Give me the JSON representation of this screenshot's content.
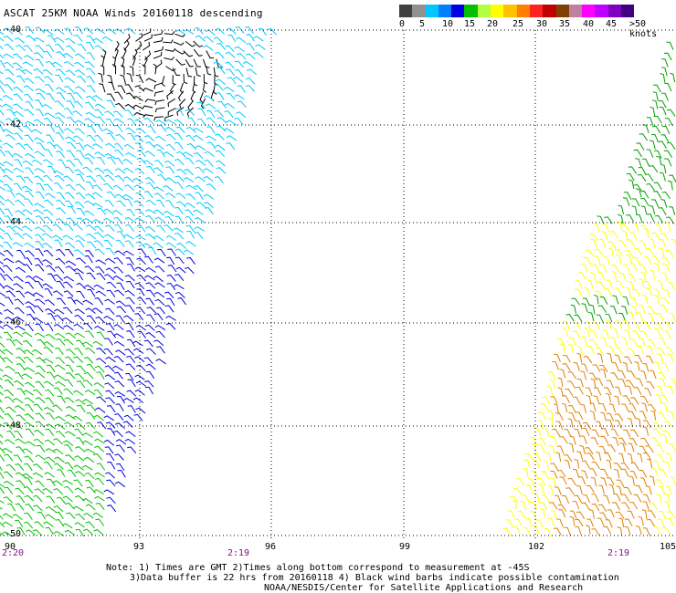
{
  "title": "ASCAT 25KM NOAA Winds 20160118 descending",
  "colorbar": {
    "colors": [
      "#404040",
      "#909090",
      "#00c8ff",
      "#0080ff",
      "#0000e0",
      "#00c000",
      "#b0ff40",
      "#ffff00",
      "#ffc000",
      "#ff8000",
      "#ff2020",
      "#c00000",
      "#804000",
      "#c080a0",
      "#ff00ff",
      "#c000ff",
      "#8000c0",
      "#400080"
    ],
    "tick_labels": [
      "0",
      "5",
      "10",
      "15",
      "20",
      "25",
      "30",
      "35",
      "40",
      "45",
      ">50 knots"
    ]
  },
  "lat_labels": [
    "-40",
    "-42",
    "-44",
    "-46",
    "-48",
    "-50"
  ],
  "lon_labels": [
    "90",
    "93",
    "96",
    "99",
    "102",
    "105"
  ],
  "time_labels": [
    "2:20",
    "2:19",
    "2:19"
  ],
  "notes": {
    "line1": "Note: 1) Times are GMT 2)Times along bottom correspond to measurement at -45S",
    "line2": "3)Data buffer is 22 hrs from 20160118 4) Black wind barbs indicate possible contamination",
    "line3": "NOAA/NESDIS/Center for Satellite Applications and Research"
  },
  "map_data": {
    "lat_range": [
      -50,
      -40
    ],
    "lon_range": [
      90,
      105
    ],
    "regions": [
      {
        "name": "black-cyclone",
        "color": "#000000"
      },
      {
        "name": "cyan-west",
        "color": "#00c8ff"
      },
      {
        "name": "blue-west",
        "color": "#0000e0"
      },
      {
        "name": "green-west",
        "color": "#00c000"
      },
      {
        "name": "green-east",
        "color": "#00a000"
      },
      {
        "name": "yellow-east",
        "color": "#ffff00"
      },
      {
        "name": "orange-east",
        "color": "#e08000"
      }
    ]
  }
}
